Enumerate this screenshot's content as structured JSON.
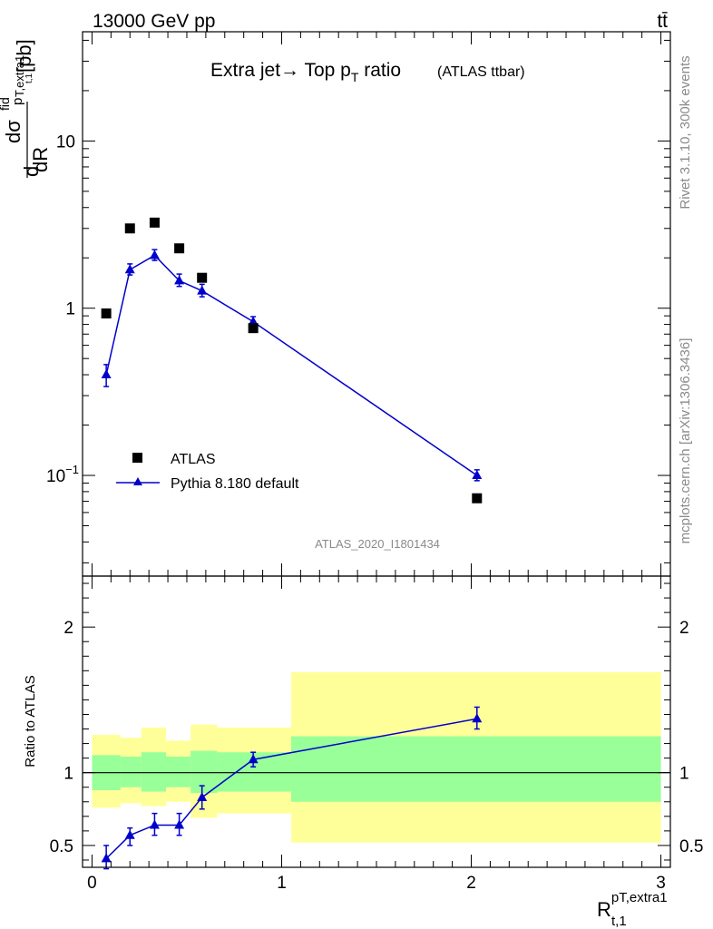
{
  "header": {
    "energy_label": "13000 GeV pp",
    "process_label": "tt̄"
  },
  "side_labels": {
    "rivet": "Rivet 3.1.10,  300k events",
    "mcplots": "mcplots.cern.ch [arXiv:1306.3436]"
  },
  "chart_data": [
    {
      "type": "scatter",
      "title": "Extra jet→ Top p",
      "title_subscript": "T",
      "title_suffix": " ratio",
      "subtitle": "(ATLAS ttbar)",
      "analysis_label": "ATLAS_2020_I1801434",
      "ylabel": {
        "pieces": [
          "d",
          "dσ",
          "fid",
          "p",
          "T,extra1",
          "t,1",
          "dR",
          "[pb]"
        ]
      },
      "yscale": "log",
      "ylim": [
        0.025,
        45
      ],
      "xlim": [
        -0.05,
        3.05
      ],
      "yticks": [
        {
          "value": 0.1,
          "label": "10",
          "exponent": "−1"
        },
        {
          "value": 1,
          "label": "1",
          "exponent": ""
        },
        {
          "value": 10,
          "label": "10",
          "exponent": ""
        }
      ],
      "legend_position": "bottom-left",
      "series": [
        {
          "name": "ATLAS",
          "marker": "square",
          "color": "#000000",
          "x": [
            0.075,
            0.2,
            0.33,
            0.46,
            0.58,
            0.85,
            2.03
          ],
          "y": [
            0.93,
            3.0,
            3.25,
            2.28,
            1.52,
            0.76,
            0.073
          ]
        },
        {
          "name": "Pythia 8.180 default",
          "marker": "triangle",
          "color": "#0000cc",
          "x": [
            0.075,
            0.2,
            0.33,
            0.46,
            0.58,
            0.85,
            2.03
          ],
          "y": [
            0.4,
            1.7,
            2.07,
            1.46,
            1.27,
            0.83,
            0.1
          ],
          "yerr_lo": [
            0.34,
            1.58,
            1.93,
            1.35,
            1.17,
            0.78,
            0.093
          ],
          "yerr_hi": [
            0.46,
            1.84,
            2.24,
            1.6,
            1.39,
            0.89,
            0.108
          ]
        }
      ]
    },
    {
      "type": "line",
      "ylabel": "Ratio to ATLAS",
      "xlabel": {
        "main": "R",
        "superscript": "pT,extra1",
        "subscript": "t,1"
      },
      "xlim": [
        -0.05,
        3.05
      ],
      "ylim": [
        0.35,
        2.35
      ],
      "yscale": "linear",
      "xticks": [
        0,
        1,
        2,
        3
      ],
      "yticks": [
        0.5,
        1,
        2
      ],
      "reference_line": 1,
      "bands": [
        {
          "x0": 0.0,
          "x1": 0.15,
          "yellow": [
            0.76,
            1.26
          ],
          "green": [
            0.88,
            1.12
          ]
        },
        {
          "x0": 0.15,
          "x1": 0.26,
          "yellow": [
            0.79,
            1.24
          ],
          "green": [
            0.9,
            1.11
          ]
        },
        {
          "x0": 0.26,
          "x1": 0.39,
          "yellow": [
            0.77,
            1.31
          ],
          "green": [
            0.87,
            1.14
          ]
        },
        {
          "x0": 0.39,
          "x1": 0.52,
          "yellow": [
            0.8,
            1.22
          ],
          "green": [
            0.9,
            1.11
          ]
        },
        {
          "x0": 0.52,
          "x1": 0.66,
          "yellow": [
            0.69,
            1.33
          ],
          "green": [
            0.86,
            1.15
          ]
        },
        {
          "x0": 0.66,
          "x1": 1.05,
          "yellow": [
            0.72,
            1.31
          ],
          "green": [
            0.87,
            1.14
          ]
        },
        {
          "x0": 1.05,
          "x1": 3.0,
          "yellow": [
            0.52,
            1.69
          ],
          "green": [
            0.8,
            1.25
          ]
        }
      ],
      "series": [
        {
          "name": "Pythia 8.180 default",
          "color": "#0000cc",
          "x": [
            0.075,
            0.2,
            0.33,
            0.46,
            0.58,
            0.85,
            2.03
          ],
          "y": [
            0.41,
            0.57,
            0.64,
            0.64,
            0.83,
            1.09,
            1.37
          ],
          "yerr_lo": [
            0.34,
            0.5,
            0.57,
            0.57,
            0.75,
            1.04,
            1.3
          ],
          "yerr_hi": [
            0.5,
            0.62,
            0.72,
            0.72,
            0.91,
            1.14,
            1.45
          ]
        }
      ],
      "colors": {
        "yellow_band": "#ffff99",
        "green_band": "#99ff99"
      }
    }
  ]
}
